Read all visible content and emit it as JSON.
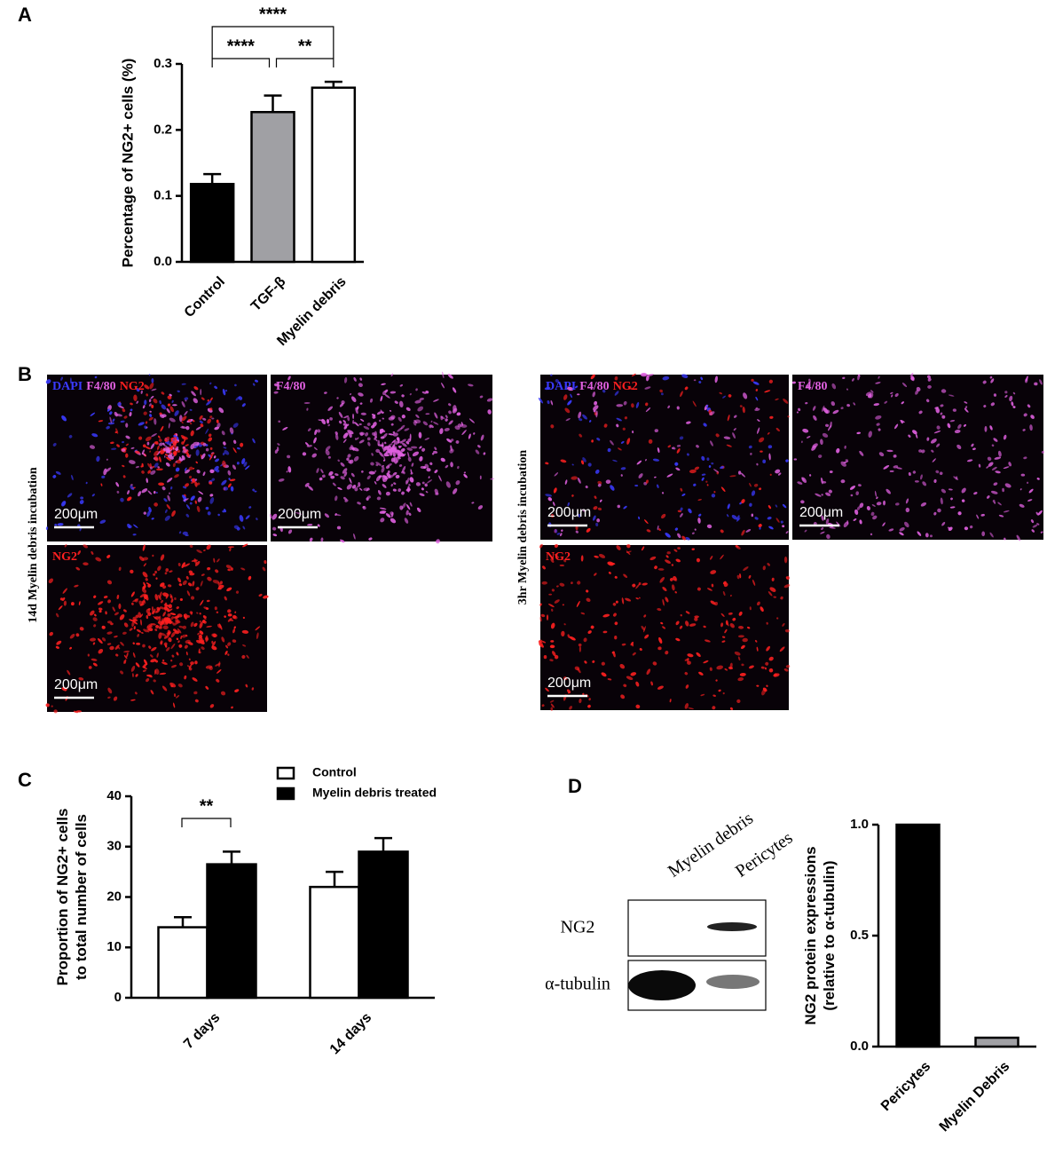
{
  "panel_labels": [
    "A",
    "B",
    "C",
    "D"
  ],
  "chart_data": [
    {
      "type": "bar",
      "categories": [
        "Control",
        "TGF-β",
        "Myelin debris"
      ],
      "values": [
        0.118,
        0.227,
        0.264
      ],
      "errors": [
        0.015,
        0.025,
        0.009
      ],
      "colors": [
        "#000000",
        "#a0a0a4",
        "#ffffff"
      ],
      "ylabel": [
        "Percentage of NG2+ cells  (%)"
      ],
      "ylim": [
        0,
        0.3
      ],
      "yticks": [
        {
          "value": 0,
          "label": "0.0"
        },
        0.1,
        0.2,
        0.3
      ],
      "annotations": [
        "****",
        "****",
        "**"
      ]
    },
    {
      "type": "grouped-bar",
      "categories": [
        "7 days",
        "14 days"
      ],
      "series": [
        {
          "name": "Control",
          "color": "#ffffff",
          "values": [
            14,
            22
          ],
          "errors": [
            2,
            3
          ]
        },
        {
          "name": "Myelin debris treated",
          "color": "#000000",
          "values": [
            26.5,
            29
          ],
          "errors": [
            2.5,
            2.7
          ]
        }
      ],
      "ylabel": [
        "Proportion of NG2+ cells",
        "to total number of cells"
      ],
      "ylim": [
        0,
        40
      ],
      "yticks": [
        0,
        10,
        20,
        30,
        40
      ],
      "annotations": [
        "**"
      ]
    },
    {
      "type": "bar",
      "categories": [
        "Pericytes",
        "Myelin Debris"
      ],
      "values": [
        1.0,
        0.04
      ],
      "colors": [
        "#000000",
        "#a0a0a4"
      ],
      "ylabel": [
        "NG2 protein expressions",
        "(relative to α-tubulin)"
      ],
      "ylim": [
        0,
        1
      ],
      "yticks": [
        {
          "value": 0,
          "label": "0.0"
        },
        0.5,
        {
          "value": 1,
          "label": "1.0"
        }
      ]
    }
  ],
  "microscopy": {
    "groups": [
      {
        "side_label": "14d Myelin debris incubation",
        "images": [
          {
            "stains": [
              {
                "text": "DAPI",
                "color": "#3a3aff"
              },
              {
                "text": "F4/80",
                "color": "#e060e0"
              },
              {
                "text": "NG2",
                "color": "#ff2020"
              }
            ],
            "scale": "200μm"
          },
          {
            "stains": [
              {
                "text": "F4/80",
                "color": "#e060e0"
              }
            ],
            "scale": "200μm"
          },
          {
            "stains": [
              {
                "text": "NG2",
                "color": "#ff2020"
              }
            ],
            "scale": "200μm"
          }
        ]
      },
      {
        "side_label": "3hr Myelin debris incubation",
        "images": [
          {
            "stains": [
              {
                "text": "DAPI",
                "color": "#3a3aff"
              },
              {
                "text": "F4/80",
                "color": "#e060e0"
              },
              {
                "text": "NG2",
                "color": "#ff2020"
              }
            ],
            "scale": "200μm"
          },
          {
            "stains": [
              {
                "text": "F4/80",
                "color": "#e060e0"
              }
            ],
            "scale": "200μm"
          },
          {
            "stains": [
              {
                "text": "NG2",
                "color": "#ff2020"
              }
            ],
            "scale": "200μm"
          }
        ]
      }
    ]
  },
  "western_blot": {
    "lanes": [
      "Myelin debris",
      "Pericytes"
    ],
    "rows": [
      "NG2",
      "α-tubulin"
    ]
  }
}
